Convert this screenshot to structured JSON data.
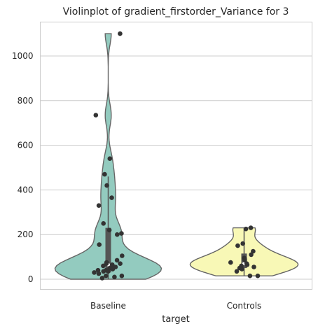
{
  "chart_data": {
    "type": "violin",
    "title": "Violinplot of gradient_firstorder_Variance for 3",
    "xlabel": "target",
    "ylabel": "",
    "ylim": [
      -45,
      1145
    ],
    "yticks": [
      0,
      200,
      400,
      600,
      800,
      1000
    ],
    "grid": true,
    "colors": {
      "Baseline": "#93cbbf",
      "Controls": "#f8f8b6",
      "outline": "#666666",
      "points": "#333333",
      "grid": "#cccccc"
    },
    "categories": [
      "Baseline",
      "Controls"
    ],
    "series": [
      {
        "category": "Baseline",
        "min": 0,
        "max": 1100,
        "q1": 30,
        "median": 65,
        "q3": 230,
        "whisker_low": 0,
        "whisker_high": 460,
        "points": [
          1100,
          735,
          540,
          470,
          420,
          365,
          330,
          250,
          220,
          205,
          200,
          155,
          105,
          85,
          75,
          70,
          70,
          65,
          60,
          55,
          50,
          45,
          40,
          40,
          35,
          35,
          30,
          25,
          15,
          15,
          10,
          5
        ]
      },
      {
        "category": "Controls",
        "min": 15,
        "max": 230,
        "q1": 50,
        "median": 70,
        "q3": 115,
        "whisker_low": 15,
        "whisker_high": 230,
        "points": [
          230,
          225,
          160,
          150,
          125,
          110,
          95,
          90,
          85,
          75,
          70,
          65,
          60,
          55,
          50,
          45,
          35,
          15,
          15
        ]
      }
    ]
  }
}
